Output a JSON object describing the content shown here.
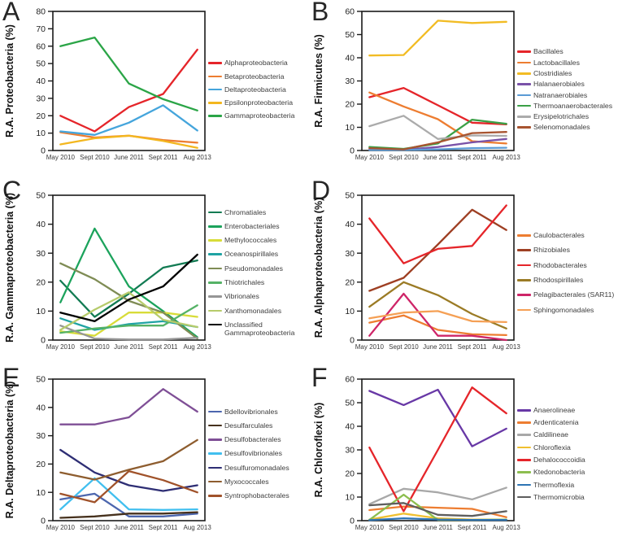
{
  "chart_data": [
    {
      "type": "line",
      "panel": "A",
      "ylabel": "R.A. Proteobacteria (%)",
      "ylim": [
        0,
        80
      ],
      "ytick_step": 10,
      "grid": false,
      "legend_position": "right",
      "categories": [
        "May 2010",
        "Sept 2010",
        "June 2011",
        "Sept 2011",
        "Aug 2013"
      ],
      "series": [
        {
          "name": "Alphaproteobacteria",
          "color": "#E5252A",
          "values": [
            20,
            11,
            25,
            32.5,
            58
          ]
        },
        {
          "name": "Betaproteobacteria",
          "color": "#ED7D31",
          "values": [
            10.5,
            7.5,
            8.5,
            6,
            4.5
          ]
        },
        {
          "name": "Deltaproteobacteria",
          "color": "#45A5DC",
          "values": [
            11,
            9,
            16,
            26,
            11.5
          ]
        },
        {
          "name": "Epsilonproteobacteria",
          "color": "#F3B71F",
          "values": [
            3.5,
            7,
            8.5,
            5.5,
            1.5
          ]
        },
        {
          "name": "Gammaproteobacteria",
          "color": "#2BA547",
          "values": [
            60,
            65,
            38.5,
            29.5,
            23
          ]
        }
      ]
    },
    {
      "type": "line",
      "panel": "B",
      "ylabel": "R.A. Firmicutes (%)",
      "ylim": [
        0,
        60
      ],
      "ytick_step": 10,
      "grid": false,
      "legend_position": "right",
      "categories": [
        "May 2010",
        "Sept 2010",
        "June 2011",
        "Sept 2011",
        "Aug 2013"
      ],
      "series": [
        {
          "name": "Bacillales",
          "color": "#E5252A",
          "values": [
            23,
            27,
            19.5,
            12,
            11.3
          ]
        },
        {
          "name": "Lactobacillales",
          "color": "#ED7D31",
          "values": [
            25,
            19,
            13.5,
            4,
            3
          ]
        },
        {
          "name": "Clostridiales",
          "color": "#F2BC24",
          "values": [
            41,
            41.2,
            56,
            55,
            55.5
          ]
        },
        {
          "name": "Halanaerobiales",
          "color": "#7A52A8",
          "values": [
            0.5,
            0.3,
            1.5,
            3.5,
            5
          ]
        },
        {
          "name": "Natranaerobiales",
          "color": "#5B9BD5",
          "values": [
            0.2,
            0.2,
            0.5,
            1,
            1.2
          ]
        },
        {
          "name": "Thermoanaerobacterales",
          "color": "#3BA047",
          "values": [
            1.5,
            0.7,
            3,
            13.3,
            11.5
          ]
        },
        {
          "name": "Erysipelotrichales",
          "color": "#ABABAB",
          "values": [
            10.5,
            15,
            5,
            6.5,
            6.3
          ]
        },
        {
          "name": "Selenomonadales",
          "color": "#A85430",
          "values": [
            1,
            0.5,
            3.5,
            7.5,
            8
          ]
        }
      ]
    },
    {
      "type": "line",
      "panel": "C",
      "ylabel": "R.A. Gammaproteobacteria (%)",
      "ylim": [
        0,
        50
      ],
      "ytick_step": 10,
      "grid": false,
      "legend_position": "right",
      "categories": [
        "May 2010",
        "Sept 2010",
        "June 2011",
        "Sept 2011",
        "Aug 2013"
      ],
      "series": [
        {
          "name": "Chromatiales",
          "color": "#127B53",
          "values": [
            20.5,
            8,
            16,
            25,
            27.5
          ]
        },
        {
          "name": "Enterobacteriales",
          "color": "#1CA35C",
          "values": [
            13,
            38.5,
            18.5,
            10,
            1
          ]
        },
        {
          "name": "Methylococcales",
          "color": "#D8DC39",
          "values": [
            3,
            1.5,
            9.5,
            9.5,
            8
          ]
        },
        {
          "name": "Oceanospirillales",
          "color": "#1FA3A3",
          "values": [
            7.5,
            3.5,
            5.5,
            6.5,
            4.5
          ]
        },
        {
          "name": "Pseudomonadales",
          "color": "#7F8C55",
          "values": [
            26.5,
            21,
            13.5,
            9.5,
            0.5
          ]
        },
        {
          "name": "Thiotrichales",
          "color": "#55B266",
          "values": [
            2.5,
            4,
            5,
            5,
            12
          ]
        },
        {
          "name": "Vibrionales",
          "color": "#969696",
          "values": [
            5,
            0.5,
            0.2,
            0.2,
            0.8
          ]
        },
        {
          "name": "Xanthomonadales",
          "color": "#B6CB6B",
          "values": [
            3.5,
            10.5,
            16.5,
            7,
            4.5
          ]
        },
        {
          "name": "Unclassified Gammaproteobacteria",
          "color": "#000000",
          "values": [
            9.5,
            6.5,
            14,
            18.5,
            29.5
          ]
        }
      ]
    },
    {
      "type": "line",
      "panel": "D",
      "ylabel": "R.A. Alphaproteobacteria (%)",
      "ylim": [
        0,
        50
      ],
      "ytick_step": 10,
      "grid": false,
      "legend_position": "right",
      "categories": [
        "May 2010",
        "Sept 2010",
        "June 2011",
        "Sept 2011",
        "Aug 2013"
      ],
      "series": [
        {
          "name": "Caulobacterales",
          "color": "#ED7D31",
          "values": [
            6,
            8.5,
            3.5,
            2,
            1.7
          ]
        },
        {
          "name": "Rhizobiales",
          "color": "#9E3F23",
          "values": [
            17,
            21.5,
            33,
            45,
            38
          ]
        },
        {
          "name": "Rhodobacterales",
          "color": "#E5252A",
          "values": [
            42,
            26.5,
            31.5,
            32.5,
            46.5
          ]
        },
        {
          "name": "Rhodospirillales",
          "color": "#9B7B25",
          "values": [
            11.5,
            20,
            15.5,
            9,
            4
          ]
        },
        {
          "name": "Pelagibacterales (SAR11)",
          "color": "#CE2568",
          "values": [
            1.5,
            16,
            1.5,
            1.5,
            0
          ]
        },
        {
          "name": "Sphingomonadales",
          "color": "#F5A055",
          "values": [
            7.5,
            9.5,
            10,
            6.5,
            6.2
          ]
        }
      ]
    },
    {
      "type": "line",
      "panel": "E",
      "ylabel": "R.A. Deltaproteobacteria (%)",
      "ylim": [
        0,
        50
      ],
      "ytick_step": 10,
      "grid": false,
      "legend_position": "right",
      "categories": [
        "May 2010",
        "Sept 2010",
        "June 2011",
        "Sept 2011",
        "Aug 2013"
      ],
      "series": [
        {
          "name": "Bdellovibrionales",
          "color": "#4C66AE",
          "values": [
            7.5,
            9.5,
            1.5,
            1.5,
            2.5
          ]
        },
        {
          "name": "Desulfarculales",
          "color": "#46311D",
          "values": [
            1,
            1.5,
            2.5,
            2.5,
            3
          ]
        },
        {
          "name": "Desulfobacterales",
          "color": "#7F4F96",
          "values": [
            34,
            34,
            36.5,
            46.5,
            38.5
          ]
        },
        {
          "name": "Desulfovibrionales",
          "color": "#41BFEF",
          "values": [
            4,
            15,
            4,
            3.8,
            4
          ]
        },
        {
          "name": "Desulfuromonadales",
          "color": "#2E2E74",
          "values": [
            25,
            17,
            12.5,
            10.5,
            12.5
          ]
        },
        {
          "name": "Myxococcales",
          "color": "#8E5D2F",
          "values": [
            17,
            14.5,
            18,
            21,
            28.5
          ]
        },
        {
          "name": "Syntrophobacterales",
          "color": "#A0522A",
          "values": [
            9.5,
            6.5,
            17.5,
            14.3,
            10
          ]
        }
      ]
    },
    {
      "type": "line",
      "panel": "F",
      "ylabel": "R.A. Chloroflexi (%)",
      "ylim": [
        0,
        60
      ],
      "ytick_step": 10,
      "grid": false,
      "legend_position": "right",
      "categories": [
        "May 2010",
        "Sept 2010",
        "June 2011",
        "Sept 2011",
        "Aug 2013"
      ],
      "series": [
        {
          "name": "Anaerolineae",
          "color": "#6838A6",
          "values": [
            55,
            49,
            55.5,
            31.5,
            39
          ]
        },
        {
          "name": "Ardenticatenia",
          "color": "#ED7D31",
          "values": [
            4.5,
            6,
            5.5,
            5,
            1.5
          ]
        },
        {
          "name": "Caldilineae",
          "color": "#A8A8A8",
          "values": [
            7,
            13.5,
            12,
            9,
            14
          ]
        },
        {
          "name": "Chloroflexia",
          "color": "#F0C030",
          "values": [
            0.5,
            3,
            1,
            0.5,
            0.5
          ]
        },
        {
          "name": "Dehalococcoidia",
          "color": "#E5252A",
          "values": [
            31,
            4,
            30,
            56.5,
            45.5
          ]
        },
        {
          "name": "Ktedonobacteria",
          "color": "#8CBE4F",
          "values": [
            0.3,
            11,
            0.3,
            0.3,
            0.5
          ]
        },
        {
          "name": "Thermoflexia",
          "color": "#2E74B4",
          "values": [
            0.2,
            1,
            0.5,
            0.3,
            0.3
          ]
        },
        {
          "name": "Thermomicrobia",
          "color": "#5E5E5E",
          "values": [
            6.5,
            7.5,
            2.5,
            2,
            4
          ]
        }
      ]
    }
  ]
}
